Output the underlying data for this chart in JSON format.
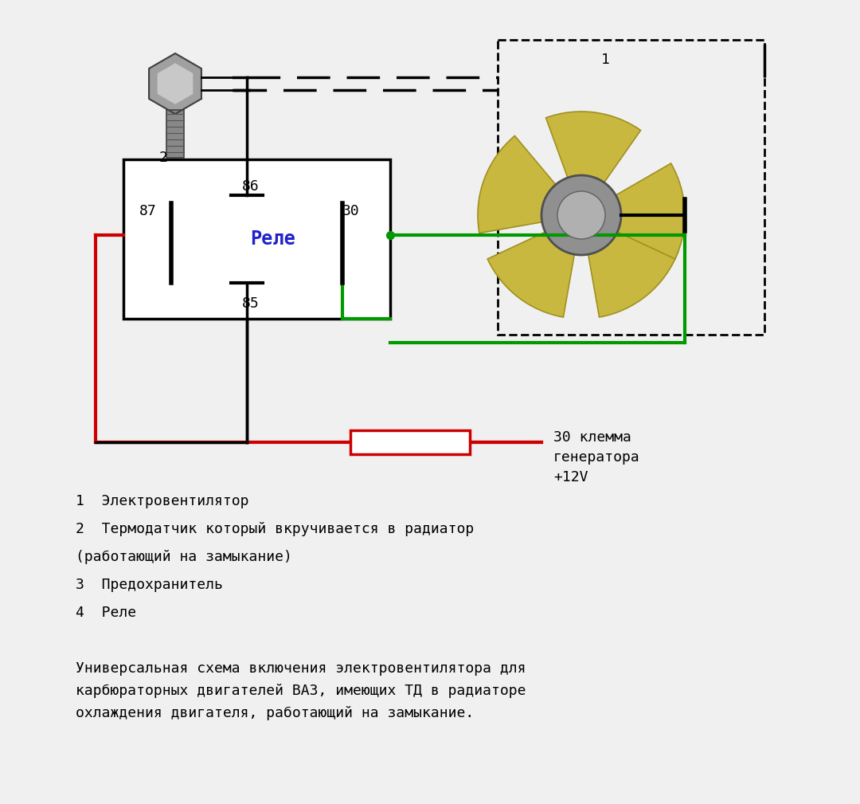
{
  "bg_color": "#f0f0f0",
  "legend_line1": "1  Электровентилятор",
  "legend_line2": "2  Термодатчик который вкручивается в радиатор",
  "legend_line3": "(работающий на замыкание)",
  "legend_line4": "3  Предохранитель",
  "legend_line5": "4  Реле",
  "description": "Универсальная схема включения электровентилятора для\nкарбюраторных двигателей ВАЗ, имеющих ТД в радиаторе\nохлаждения двигателя, работающий на замыкание.",
  "relay_label": "Реле",
  "relay_color": "#2222cc",
  "label30": "30 клемма\nгенератора\n+12V",
  "wire_red": "#cc0000",
  "wire_green": "#009900",
  "wire_black": "#111111",
  "fuse_color": "#cc0000",
  "pin86": "86",
  "pin87": "87",
  "pin30": "30",
  "pin85": "85"
}
